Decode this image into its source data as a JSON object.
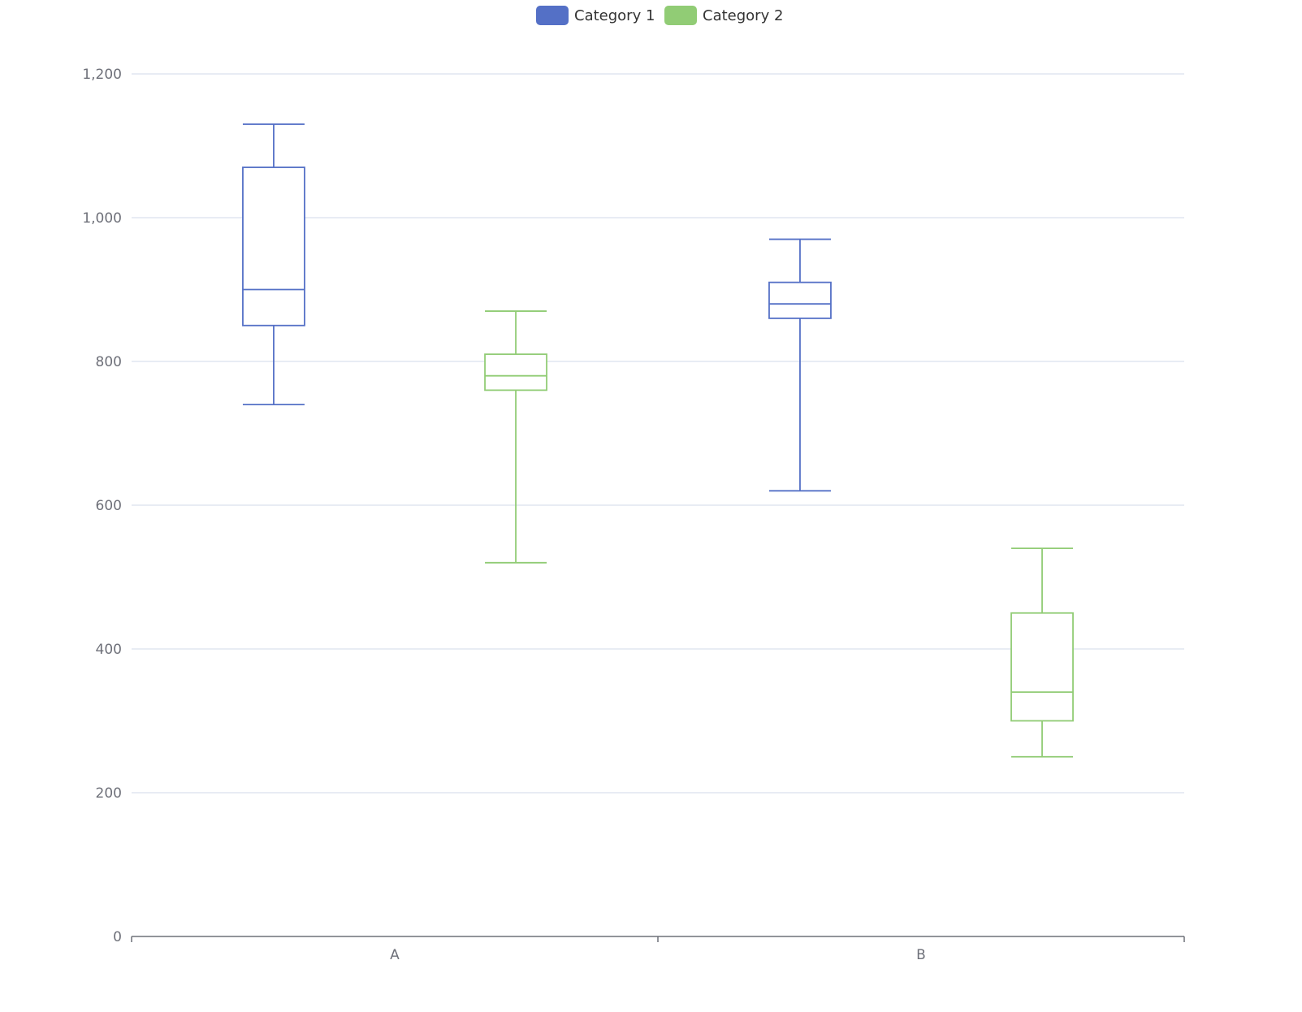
{
  "chart_data": {
    "type": "boxplot",
    "categories": [
      "A",
      "B"
    ],
    "series": [
      {
        "name": "Category 1",
        "color": "#5470c6",
        "boxes": [
          {
            "category": "A",
            "min": 740,
            "q1": 850,
            "median": 900,
            "q3": 1070,
            "max": 1130
          },
          {
            "category": "B",
            "min": 620,
            "q1": 860,
            "median": 880,
            "q3": 910,
            "max": 970
          }
        ]
      },
      {
        "name": "Category 2",
        "color": "#91cc75",
        "boxes": [
          {
            "category": "A",
            "min": 520,
            "q1": 760,
            "median": 780,
            "q3": 810,
            "max": 870
          },
          {
            "category": "B",
            "min": 250,
            "q1": 300,
            "median": 340,
            "q3": 450,
            "max": 540
          }
        ]
      }
    ],
    "yticks": [
      "0",
      "200",
      "400",
      "600",
      "800",
      "1,000",
      "1,200"
    ],
    "ylim": [
      0,
      1200
    ],
    "grid": true,
    "legend_position": "top-center",
    "title": "",
    "xlabel": "",
    "ylabel": ""
  }
}
